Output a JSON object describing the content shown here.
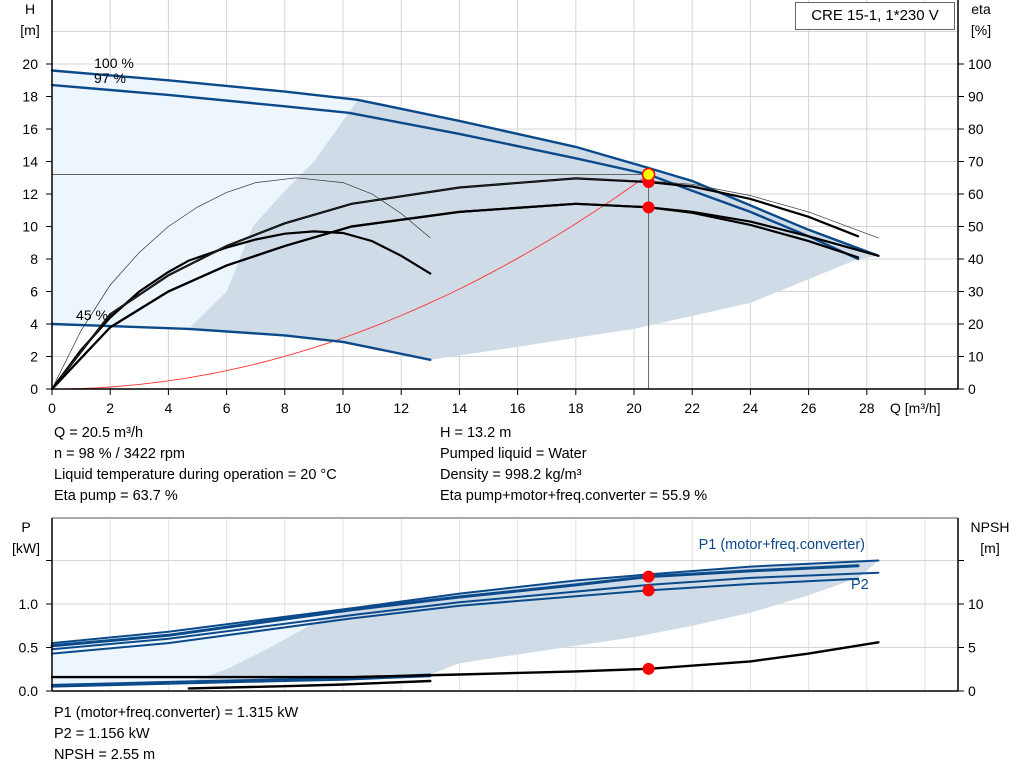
{
  "title": "CRE 15-1, 1*230 V",
  "colors": {
    "curve_blue": "#0b4a8a",
    "shade_light": "#eef6fd",
    "shade_dark": "#cfdbe7",
    "grid": "#d4d4d4",
    "system_curve": "#ff3333",
    "point_red": "#ff0000",
    "point_yellow": "#ffff00"
  },
  "info_top_left": [
    "Q = 20.5 m³/h",
    "n = 98 % / 3422 rpm",
    "Liquid temperature during operation = 20 °C",
    "Eta pump = 63.7 %"
  ],
  "info_top_right": [
    "H = 13.2 m",
    "Pumped liquid = Water",
    "Density = 998.2 kg/m³",
    "Eta pump+motor+freq.converter = 55.9 %"
  ],
  "info_bottom": [
    "P1 (motor+freq.converter) = 1.315 kW",
    "P2 = 1.156 kW",
    "NPSH = 2.55 m"
  ],
  "chart_data": [
    {
      "type": "line",
      "xlabel": "Q [m³/h]",
      "ylabel": "H\n[m]",
      "ylabel_parts": [
        "H",
        "[m]"
      ],
      "y2label_parts": [
        "eta",
        "[%]"
      ],
      "xlim": [
        0,
        31
      ],
      "ylim": [
        0,
        24
      ],
      "y2lim": [
        0,
        120
      ],
      "x_ticks": [
        0,
        2,
        4,
        6,
        8,
        10,
        12,
        14,
        16,
        18,
        20,
        22,
        24,
        26,
        28
      ],
      "y_ticks": [
        0,
        2,
        4,
        6,
        8,
        10,
        12,
        14,
        16,
        18,
        20
      ],
      "y2_ticks": [
        0,
        10,
        20,
        30,
        40,
        50,
        60,
        70,
        80,
        90,
        100
      ],
      "grid": true,
      "annotations": [
        "100 %",
        "97 %",
        "45 %"
      ],
      "series": [
        {
          "axis": "H",
          "style": "blue",
          "points": [
            [
              0,
              19.6
            ],
            [
              4,
              19.0
            ],
            [
              8,
              18.3
            ],
            [
              10.5,
              17.8
            ],
            [
              14,
              16.5
            ],
            [
              18,
              14.9
            ],
            [
              20.5,
              13.6
            ],
            [
              22,
              12.8
            ],
            [
              24,
              11.3
            ],
            [
              26,
              9.8
            ],
            [
              28.4,
              8.2
            ]
          ]
        },
        {
          "axis": "H",
          "style": "blue",
          "points": [
            [
              0,
              18.7
            ],
            [
              4,
              18.1
            ],
            [
              8,
              17.4
            ],
            [
              10.2,
              17.0
            ],
            [
              14,
              15.7
            ],
            [
              18,
              14.2
            ],
            [
              20.5,
              13.2
            ],
            [
              22,
              12.2
            ],
            [
              24,
              10.9
            ],
            [
              26,
              9.4
            ],
            [
              27.7,
              8.0
            ]
          ]
        },
        {
          "axis": "H",
          "style": "blue",
          "points": [
            [
              0,
              4.0
            ],
            [
              4.7,
              3.7
            ],
            [
              8,
              3.3
            ],
            [
              10,
              2.9
            ],
            [
              13,
              1.8
            ]
          ]
        },
        {
          "axis": "eta",
          "style": "thin",
          "points": [
            [
              0,
              0
            ],
            [
              1,
              18
            ],
            [
              2,
              32
            ],
            [
              3,
              42
            ],
            [
              4,
              50
            ],
            [
              5,
              56
            ],
            [
              6,
              60.5
            ],
            [
              7,
              63.5
            ],
            [
              8.4,
              65
            ],
            [
              10,
              63.5
            ],
            [
              11,
              60
            ],
            [
              12,
              54
            ],
            [
              13,
              46.5
            ]
          ]
        },
        {
          "axis": "eta",
          "style": "black",
          "points": [
            [
              0,
              0
            ],
            [
              1,
              12
            ],
            [
              2,
              22
            ],
            [
              3,
              30
            ],
            [
              4,
              36
            ],
            [
              4.7,
              39.5
            ],
            [
              6,
              43.5
            ],
            [
              7,
              46
            ],
            [
              8,
              47.8
            ],
            [
              9,
              48.5
            ],
            [
              10,
              48
            ],
            [
              11,
              45.5
            ],
            [
              12,
              41
            ],
            [
              13,
              35.5
            ]
          ]
        },
        {
          "axis": "eta",
          "style": "black",
          "points": [
            [
              0,
              0
            ],
            [
              2,
              23
            ],
            [
              4,
              35
            ],
            [
              6,
              44
            ],
            [
              8,
              51
            ],
            [
              10.3,
              57
            ],
            [
              14,
              62
            ],
            [
              18,
              64.8
            ],
            [
              20.5,
              63.7
            ],
            [
              22,
              62.3
            ],
            [
              24,
              58.5
            ],
            [
              26,
              53
            ],
            [
              27.7,
              47
            ]
          ]
        },
        {
          "axis": "eta",
          "style": "thin",
          "points": [
            [
              0,
              0
            ],
            [
              2,
              23
            ],
            [
              4,
              35
            ],
            [
              6,
              44
            ],
            [
              8,
              51
            ],
            [
              10.3,
              57
            ],
            [
              14,
              62
            ],
            [
              18,
              64.8
            ],
            [
              20.5,
              64
            ],
            [
              22,
              63
            ],
            [
              24,
              59.5
            ],
            [
              26,
              54.5
            ],
            [
              28.4,
              46.5
            ]
          ]
        },
        {
          "axis": "eta",
          "style": "black",
          "points": [
            [
              0,
              0
            ],
            [
              2,
              19
            ],
            [
              4,
              30
            ],
            [
              6,
              38
            ],
            [
              8,
              44
            ],
            [
              10.3,
              50
            ],
            [
              14,
              54.5
            ],
            [
              18,
              57
            ],
            [
              20.5,
              55.9
            ],
            [
              22,
              54.5
            ],
            [
              24,
              51.5
            ],
            [
              26,
              47
            ],
            [
              28.4,
              41
            ]
          ]
        },
        {
          "axis": "eta",
          "style": "black",
          "points": [
            [
              0,
              0
            ],
            [
              2,
              19
            ],
            [
              4,
              30
            ],
            [
              6,
              38
            ],
            [
              8,
              44
            ],
            [
              10.3,
              50
            ],
            [
              14,
              54.5
            ],
            [
              18,
              57
            ],
            [
              20.5,
              55.9
            ],
            [
              22,
              54.2
            ],
            [
              24,
              50.5
            ],
            [
              26,
              45.5
            ],
            [
              27.7,
              40.5
            ]
          ]
        },
        {
          "axis": "H",
          "style": "system",
          "points": "k*Q^2 through (20.5, 13.2)"
        }
      ],
      "operating_point": {
        "Q": 20.5,
        "H": 13.2,
        "eta_pump": 63.7,
        "eta_total": 55.9
      }
    },
    {
      "type": "line",
      "ylabel_parts": [
        "P",
        "[kW]"
      ],
      "y2label_parts": [
        "NPSH",
        "[m]"
      ],
      "xlim": [
        0,
        31
      ],
      "ylim": [
        0,
        1.5
      ],
      "y2lim": [
        0,
        15
      ],
      "y_ticks": [
        0.0,
        0.5,
        1.0
      ],
      "y2_ticks": [
        0,
        5,
        10
      ],
      "grid": true,
      "legend": [
        "P1 (motor+freq.converter)",
        "P2"
      ],
      "series": [
        {
          "axis": "P",
          "style": "blue",
          "points": [
            [
              0,
              0.55
            ],
            [
              4,
              0.68
            ],
            [
              10.5,
              0.96
            ],
            [
              14,
              1.12
            ],
            [
              18,
              1.27
            ],
            [
              20.5,
              1.34
            ],
            [
              24,
              1.43
            ],
            [
              28.4,
              1.5
            ]
          ]
        },
        {
          "axis": "P",
          "style": "bluethick",
          "points": [
            [
              0,
              0.52
            ],
            [
              4,
              0.64
            ],
            [
              10.2,
              0.93
            ],
            [
              14,
              1.08
            ],
            [
              18,
              1.22
            ],
            [
              20.5,
              1.315
            ],
            [
              24,
              1.38
            ],
            [
              27.7,
              1.44
            ]
          ]
        },
        {
          "axis": "P",
          "style": "blue",
          "points": [
            [
              0,
              0.48
            ],
            [
              4,
              0.6
            ],
            [
              10.5,
              0.88
            ],
            [
              14,
              1.02
            ],
            [
              20.5,
              1.22
            ],
            [
              24,
              1.3
            ],
            [
              28.4,
              1.36
            ]
          ]
        },
        {
          "axis": "P",
          "style": "blue",
          "points": [
            [
              0,
              0.43
            ],
            [
              4,
              0.55
            ],
            [
              10.2,
              0.83
            ],
            [
              14,
              0.98
            ],
            [
              20.5,
              1.156
            ],
            [
              24,
              1.23
            ],
            [
              27.7,
              1.29
            ]
          ]
        },
        {
          "axis": "P",
          "style": "blue",
          "points": [
            [
              0,
              0.07
            ],
            [
              4.7,
              0.11
            ],
            [
              8,
              0.135
            ],
            [
              10,
              0.15
            ],
            [
              13,
              0.19
            ]
          ]
        },
        {
          "axis": "P",
          "style": "blue",
          "points": [
            [
              0,
              0.05
            ],
            [
              4.7,
              0.09
            ],
            [
              8,
              0.115
            ],
            [
              10,
              0.13
            ],
            [
              13,
              0.17
            ]
          ]
        },
        {
          "axis": "NPSH",
          "style": "black",
          "points": [
            [
              0,
              1.6
            ],
            [
              10.3,
              1.6
            ],
            [
              14,
              1.9
            ],
            [
              18,
              2.25
            ],
            [
              20.5,
              2.55
            ],
            [
              24,
              3.4
            ],
            [
              26,
              4.3
            ],
            [
              28.4,
              5.6
            ]
          ]
        },
        {
          "axis": "NPSH",
          "style": "black",
          "points": [
            [
              4.7,
              0.3
            ],
            [
              8,
              0.55
            ],
            [
              10,
              0.75
            ],
            [
              13,
              1.15
            ]
          ]
        }
      ],
      "operating_point": {
        "Q": 20.5,
        "P1": 1.315,
        "P2": 1.156,
        "NPSH": 2.55
      }
    }
  ]
}
